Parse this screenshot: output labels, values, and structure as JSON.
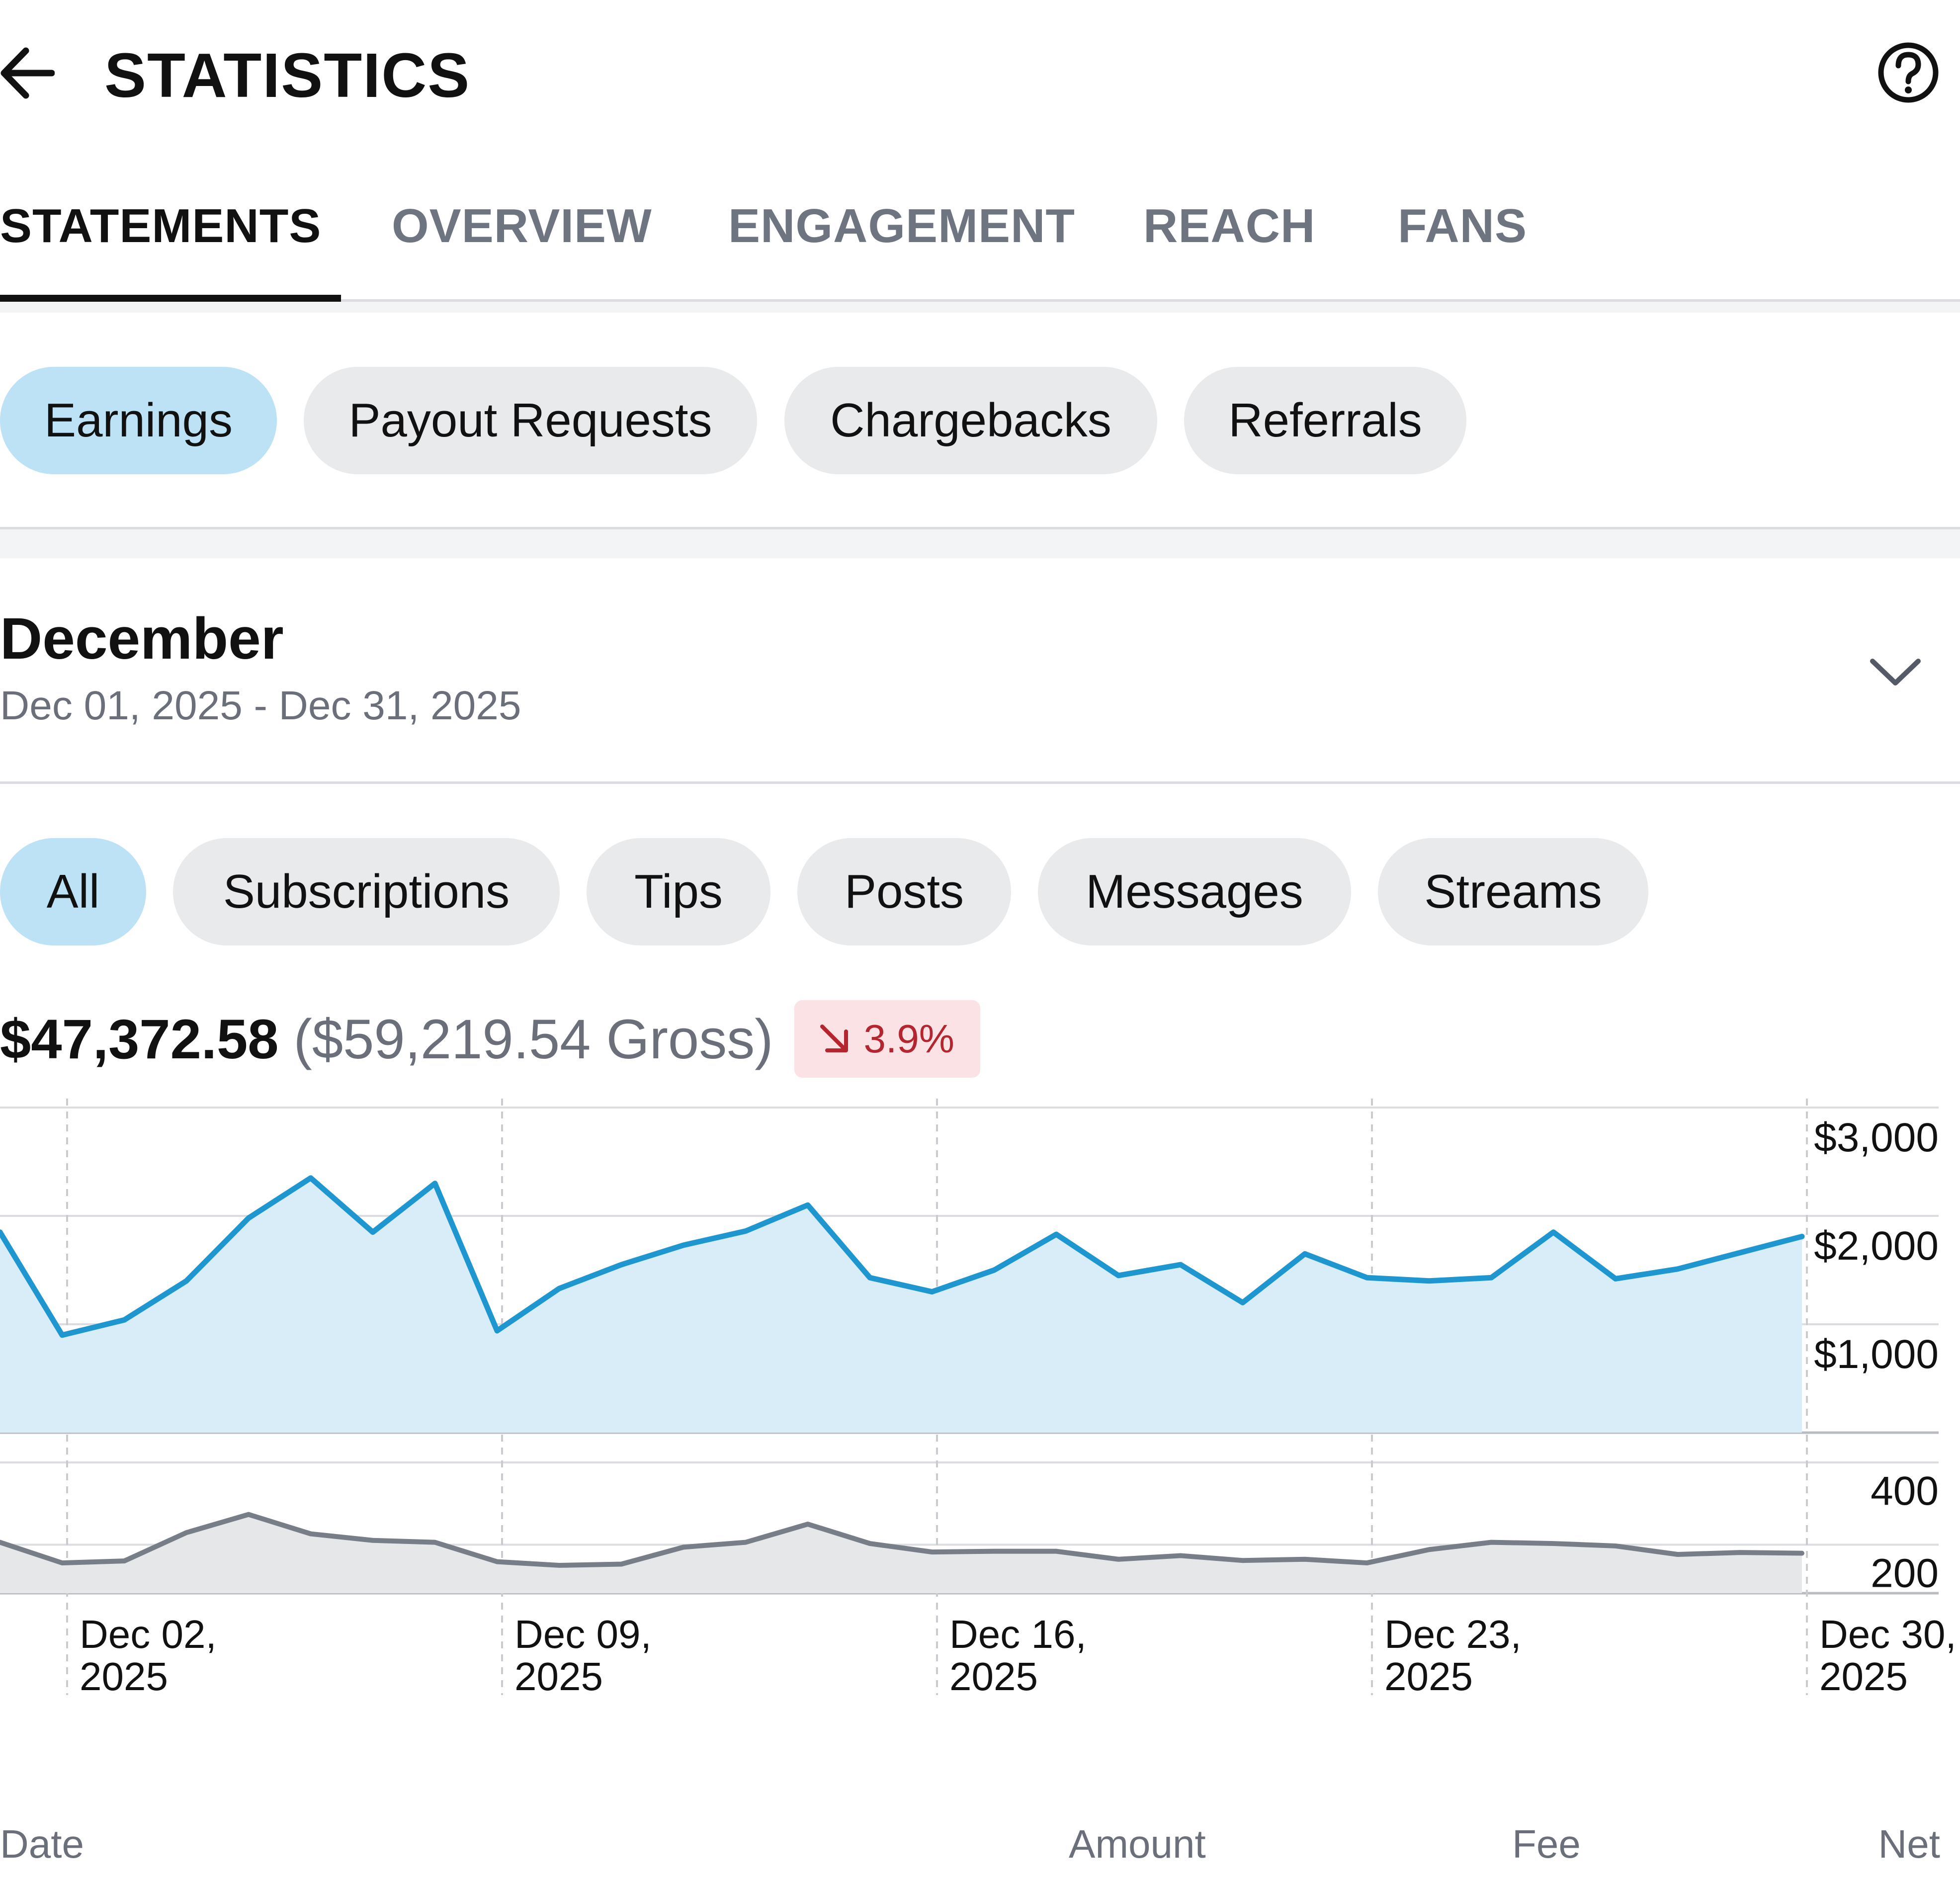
{
  "header": {
    "title": "STATISTICS",
    "back_icon": "arrow-left-icon",
    "help_icon": "question-circle-icon"
  },
  "tabs": [
    {
      "label": "STATEMENTS",
      "active": true
    },
    {
      "label": "OVERVIEW",
      "active": false
    },
    {
      "label": "ENGAGEMENT",
      "active": false
    },
    {
      "label": "REACH",
      "active": false
    },
    {
      "label": "FANS",
      "active": false
    }
  ],
  "statement_types": [
    {
      "label": "Earnings",
      "active": true
    },
    {
      "label": "Payout Requests",
      "active": false
    },
    {
      "label": "Chargebacks",
      "active": false
    },
    {
      "label": "Referrals",
      "active": false
    }
  ],
  "period": {
    "title": "December",
    "range": "Dec 01, 2025 - Dec 31, 2025",
    "toggle_icon": "chevron-down-icon"
  },
  "categories": [
    {
      "label": "All",
      "active": true
    },
    {
      "label": "Subscriptions",
      "active": false
    },
    {
      "label": "Tips",
      "active": false
    },
    {
      "label": "Posts",
      "active": false
    },
    {
      "label": "Messages",
      "active": false
    },
    {
      "label": "Streams",
      "active": false
    }
  ],
  "totals": {
    "net": "$47,372.58",
    "gross": "($59,219.54 Gross)",
    "change": "3.9%",
    "change_direction": "down",
    "change_icon": "arrow-down-right-icon"
  },
  "colors": {
    "accent": "#1e96cf",
    "accent_fill": "#d9edf9",
    "secondary_line": "#777e88",
    "secondary_fill": "#e6e7e9",
    "negative": "#b3262f",
    "negative_bg": "#fbe3e5",
    "active_pill": "#bde2f6"
  },
  "chart_data": [
    {
      "type": "area",
      "x": [
        "Dec 01",
        "Dec 02",
        "Dec 03",
        "Dec 04",
        "Dec 05",
        "Dec 06",
        "Dec 07",
        "Dec 08",
        "Dec 09",
        "Dec 10",
        "Dec 11",
        "Dec 12",
        "Dec 13",
        "Dec 14",
        "Dec 15",
        "Dec 16",
        "Dec 17",
        "Dec 18",
        "Dec 19",
        "Dec 20",
        "Dec 21",
        "Dec 22",
        "Dec 23",
        "Dec 24",
        "Dec 25",
        "Dec 26",
        "Dec 27",
        "Dec 28",
        "Dec 29",
        "Dec 30"
      ],
      "series": [
        {
          "values": [
            1850,
            900,
            1040,
            1400,
            1980,
            2350,
            1850,
            2300,
            940,
            1330,
            1550,
            1730,
            1860,
            2100,
            1430,
            1300,
            1500,
            1830,
            1450,
            1550,
            1200,
            1650,
            1430,
            1400,
            1430,
            1850,
            1420,
            1510,
            1660,
            1810
          ]
        }
      ],
      "y_ticks": [
        "$1,000",
        "$2,000",
        "$3,000"
      ],
      "ylim": [
        0,
        3000
      ],
      "grid": true
    },
    {
      "type": "area",
      "x": [
        "Dec 01",
        "Dec 02",
        "Dec 03",
        "Dec 04",
        "Dec 05",
        "Dec 06",
        "Dec 07",
        "Dec 08",
        "Dec 09",
        "Dec 10",
        "Dec 11",
        "Dec 12",
        "Dec 13",
        "Dec 14",
        "Dec 15",
        "Dec 16",
        "Dec 17",
        "Dec 18",
        "Dec 19",
        "Dec 20",
        "Dec 21",
        "Dec 22",
        "Dec 23",
        "Dec 24",
        "Dec 25",
        "Dec 26",
        "Dec 27",
        "Dec 28",
        "Dec 29",
        "Dec 30"
      ],
      "series": [
        {
          "values": [
            210,
            125,
            133,
            250,
            325,
            245,
            218,
            210,
            130,
            115,
            120,
            190,
            210,
            285,
            205,
            170,
            173,
            173,
            140,
            155,
            135,
            140,
            125,
            180,
            210,
            205,
            195,
            160,
            168,
            165
          ]
        }
      ],
      "y_ticks": [
        "200",
        "400"
      ],
      "ylim": [
        0,
        400
      ],
      "grid": true,
      "x_ticks": [
        {
          "line1": "Dec 02,",
          "line2": "2025"
        },
        {
          "line1": "Dec 09,",
          "line2": "2025"
        },
        {
          "line1": "Dec 16,",
          "line2": "2025"
        },
        {
          "line1": "Dec 23,",
          "line2": "2025"
        },
        {
          "line1": "Dec 30,",
          "line2": "2025"
        }
      ]
    }
  ],
  "table": {
    "columns": [
      "Date",
      "Amount",
      "Fee",
      "Net"
    ]
  }
}
